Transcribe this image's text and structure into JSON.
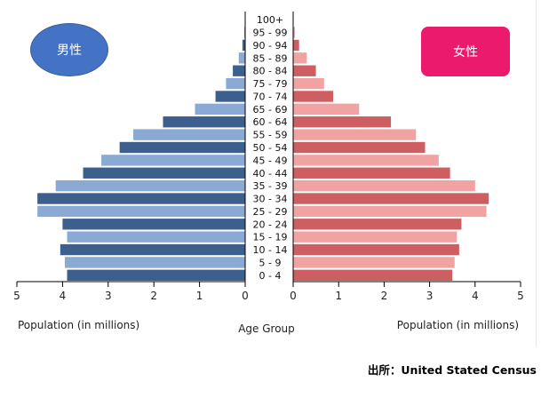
{
  "badges": {
    "male": "男性",
    "female": "女性"
  },
  "source_note": "出所：United Stated Census",
  "colors": {
    "male_dark": "#3c5f8e",
    "male_light": "#8aa9d4",
    "female_dark": "#cd5e62",
    "female_light": "#f1a3a3",
    "male_badge": "#4472c4",
    "female_badge": "#ec1a6c"
  },
  "chart_data": {
    "type": "bar",
    "orientation": "horizontal population pyramid",
    "categories": [
      "0 - 4",
      "5 - 9",
      "10 - 14",
      "15 - 19",
      "20 - 24",
      "25 - 29",
      "30 - 34",
      "35 - 39",
      "40 - 44",
      "45 - 49",
      "50 - 54",
      "55 - 59",
      "60 - 64",
      "65 - 69",
      "70 - 74",
      "75 - 79",
      "80 - 84",
      "85 - 89",
      "90 - 94",
      "95 - 99",
      "100+"
    ],
    "series": [
      {
        "name": "男性",
        "values": [
          3.9,
          3.95,
          4.05,
          3.9,
          4.0,
          4.55,
          4.55,
          4.15,
          3.55,
          3.15,
          2.75,
          2.45,
          1.8,
          1.1,
          0.65,
          0.42,
          0.27,
          0.14,
          0.06,
          0.02,
          0.005
        ]
      },
      {
        "name": "女性",
        "values": [
          3.5,
          3.55,
          3.65,
          3.6,
          3.7,
          4.25,
          4.3,
          4.0,
          3.45,
          3.2,
          2.9,
          2.7,
          2.15,
          1.45,
          0.88,
          0.68,
          0.5,
          0.3,
          0.13,
          0.04,
          0.01
        ]
      }
    ],
    "left_ticks": [
      "5",
      "4",
      "3",
      "2",
      "1",
      "0"
    ],
    "right_ticks": [
      "0",
      "1",
      "2",
      "3",
      "4",
      "5"
    ],
    "xlim": [
      0,
      5
    ],
    "xlabel_left": "Population (in millions)",
    "xlabel_center": "Age Group",
    "xlabel_right": "Population (in millions)",
    "grid": false
  }
}
